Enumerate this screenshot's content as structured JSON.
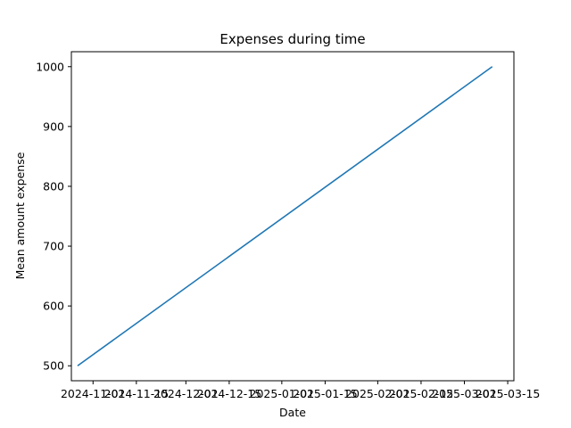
{
  "chart_data": {
    "type": "line",
    "title": "Expenses during time",
    "xlabel": "Date",
    "ylabel": "Mean amount expense",
    "x_tick_labels": [
      "2024-11-01",
      "2024-11-15",
      "2024-12-01",
      "2024-12-15",
      "2025-01-01",
      "2025-01-15",
      "2025-02-01",
      "2025-02-15",
      "2025-03-01",
      "2025-03-15"
    ],
    "y_tick_labels": [
      "500",
      "600",
      "700",
      "800",
      "900",
      "1000"
    ],
    "xlim": [
      "2024-10-25",
      "2025-03-17"
    ],
    "ylim": [
      475,
      1025
    ],
    "grid": false,
    "series": [
      {
        "color": "#1f77b4",
        "x": [
          "2024-10-27",
          "2025-03-10"
        ],
        "y": [
          500,
          1000
        ]
      }
    ]
  }
}
